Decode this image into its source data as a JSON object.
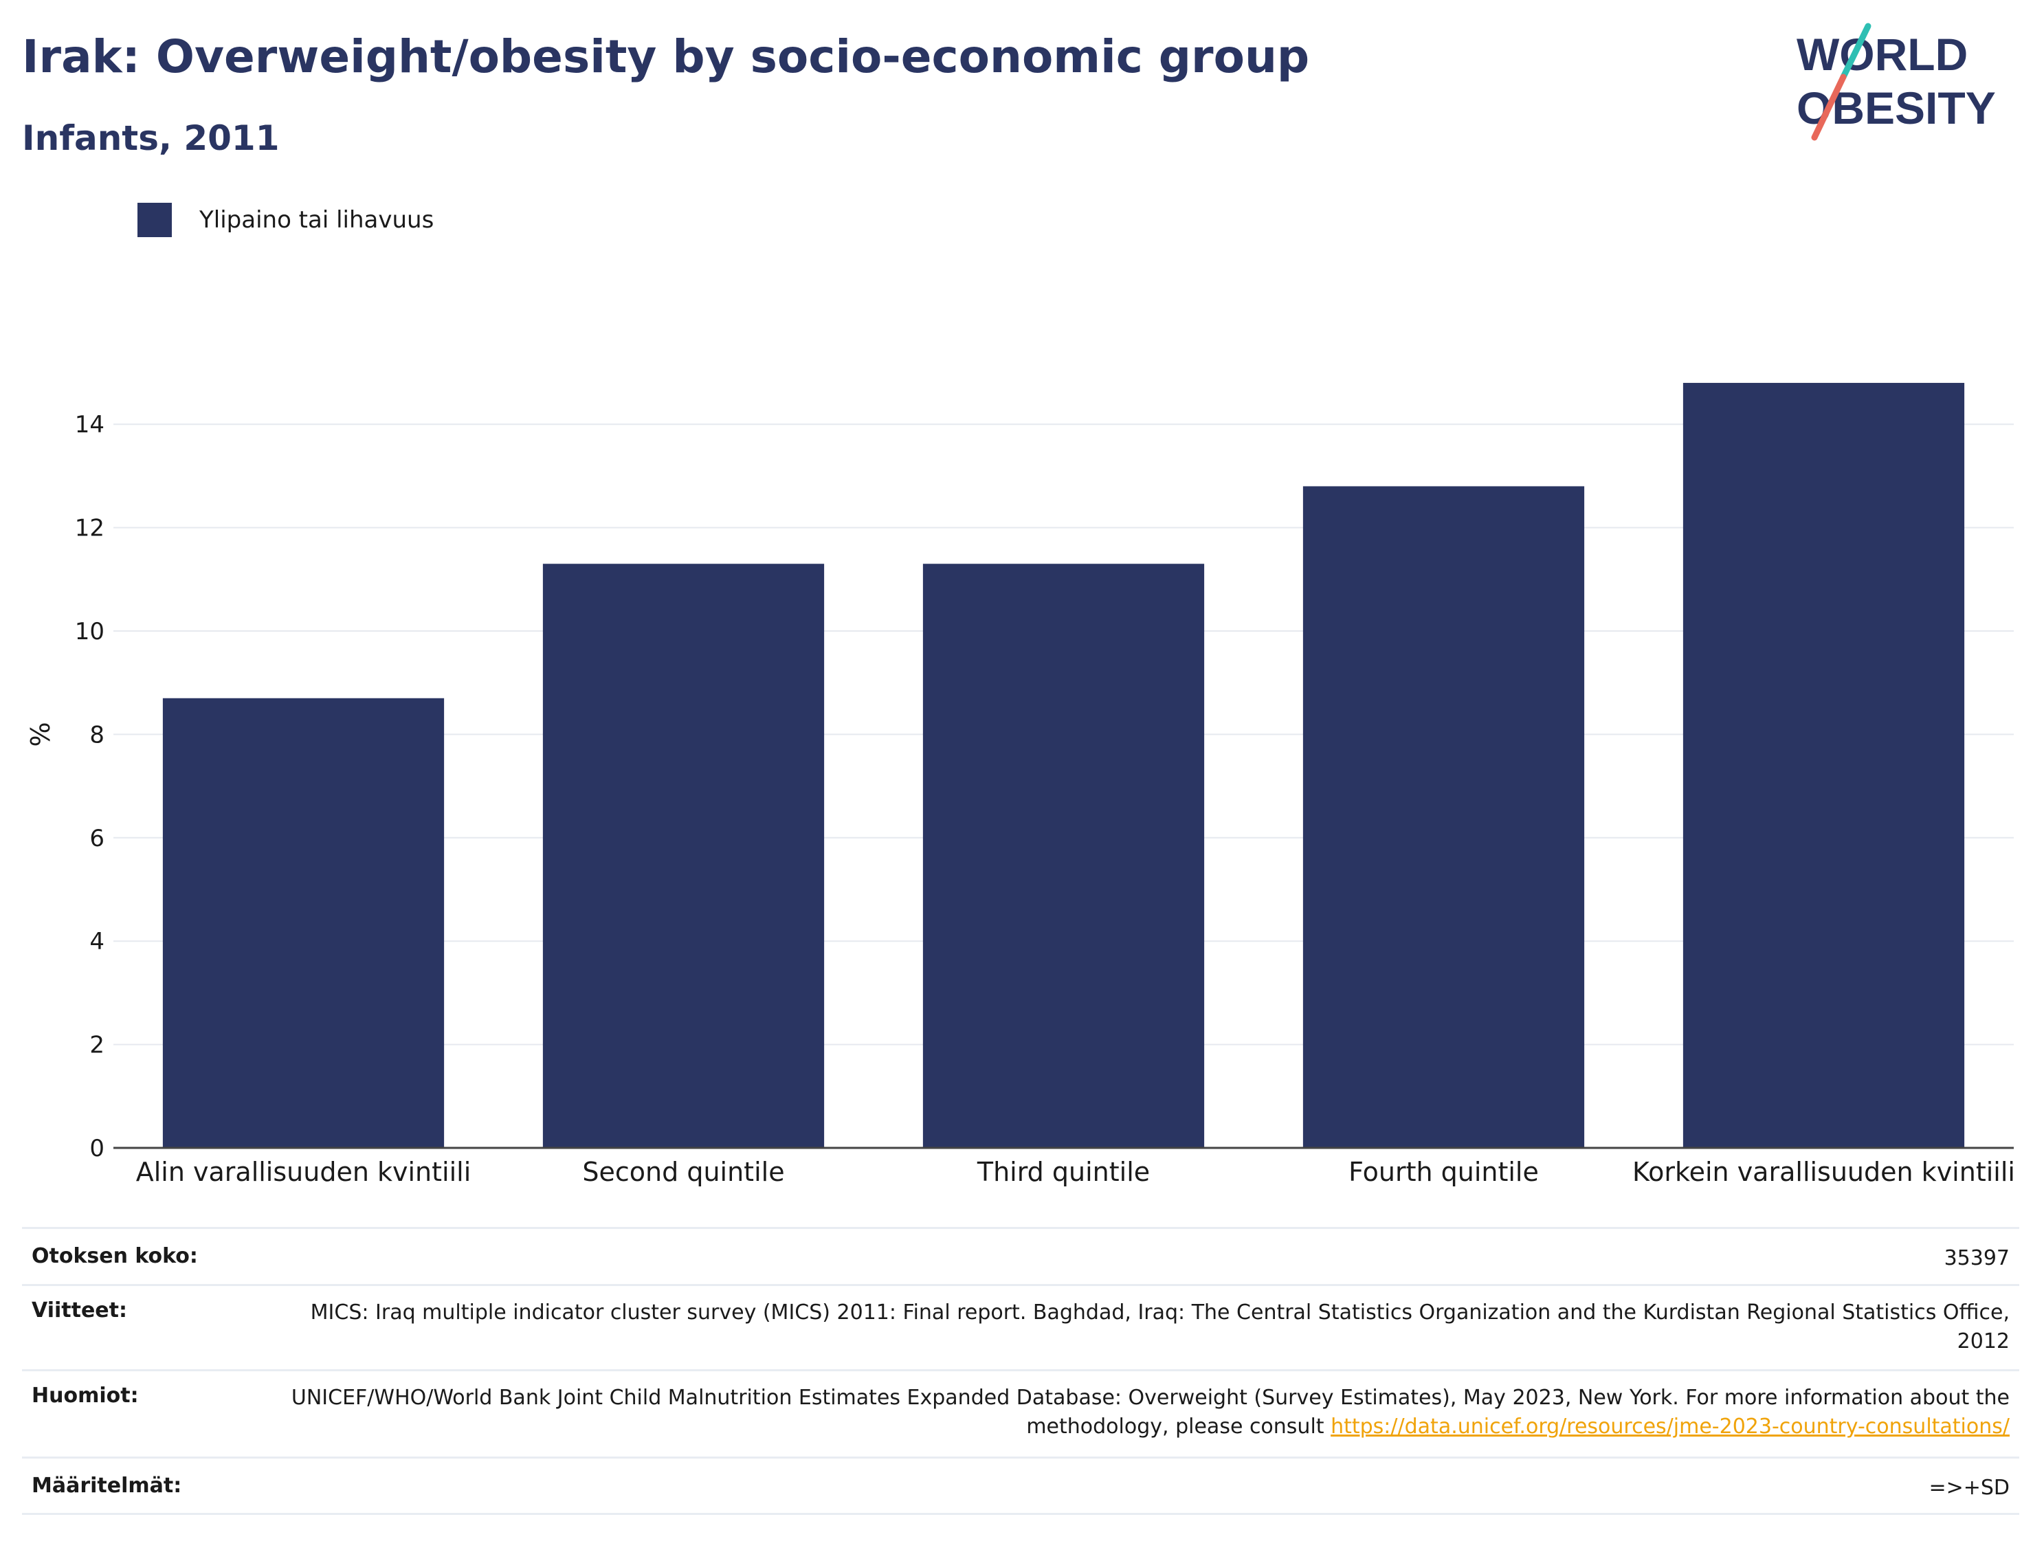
{
  "header": {
    "title": "Irak: Overweight/obesity by socio-economic group",
    "subtitle": "Infants, 2011"
  },
  "logo": {
    "line1": "WORLD",
    "line2": "OBESITY",
    "colors": {
      "text": "#2a3562",
      "slash_top": "#2ebfb3",
      "slash_bottom": "#e8685a"
    }
  },
  "legend": {
    "label": "Ylipaino tai lihavuus",
    "color": "#2a3562"
  },
  "chart_data": {
    "type": "bar",
    "categories": [
      "Alin varallisuuden kvintiili",
      "Second quintile",
      "Third quintile",
      "Fourth quintile",
      "Korkein varallisuuden kvintiili"
    ],
    "series": [
      {
        "name": "Ylipaino tai lihavuus",
        "values": [
          8.7,
          11.3,
          11.3,
          12.8,
          14.8
        ],
        "color": "#2a3562"
      }
    ],
    "ylabel": "%",
    "ylim": [
      0,
      15.5
    ],
    "yticks": [
      0,
      2,
      4,
      6,
      8,
      10,
      12,
      14
    ],
    "grid": true,
    "legend_position": "top-left"
  },
  "info": {
    "sample_label": "Otoksen koko:",
    "sample_value": "35397",
    "references_label": "Viitteet:",
    "references_value": "MICS: Iraq multiple indicator cluster survey (MICS) 2011: Final report. Baghdad, Iraq: The Central Statistics Organization and the Kurdistan Regional Statistics Office, 2012",
    "notes_label": "Huomiot:",
    "notes_text": "UNICEF/WHO/World Bank Joint Child Malnutrition Estimates Expanded Database: Overweight (Survey Estimates), May 2023, New York. For more information about the methodology, please consult",
    "notes_link": "https://data.unicef.org/resources/jme-2023-country-consultations/",
    "definitions_label": "Määritelmät:",
    "definitions_value": "=>+SD"
  }
}
